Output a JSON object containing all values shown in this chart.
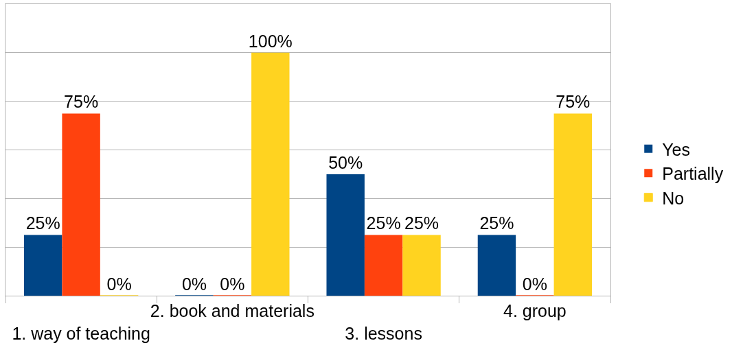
{
  "chart_data": {
    "type": "bar",
    "categories": [
      "1. way of teaching",
      "2. book and materials",
      "3. lessons",
      "4. group"
    ],
    "series": [
      {
        "name": "Yes",
        "color": "#004586",
        "values": [
          25,
          0,
          50,
          25
        ],
        "value_labels": [
          "25%",
          "0%",
          "50%",
          "25%"
        ]
      },
      {
        "name": "Partially",
        "color": "#ff420e",
        "values": [
          75,
          0,
          25,
          0
        ],
        "value_labels": [
          "75%",
          "0%",
          "25%",
          "0%"
        ]
      },
      {
        "name": "No",
        "color": "#ffd320",
        "values": [
          0,
          100,
          25,
          75
        ],
        "value_labels": [
          "0%",
          "100%",
          "25%",
          "75%"
        ]
      }
    ],
    "ylim": [
      0,
      120
    ],
    "yticks": [
      {
        "value": 0,
        "label": null
      },
      {
        "value": 20,
        "label": null
      },
      {
        "value": 40,
        "label": null
      },
      {
        "value": 60,
        "label": null
      },
      {
        "value": 80,
        "label": null
      },
      {
        "value": 100,
        "label": null
      },
      {
        "value": 120,
        "label": null
      }
    ],
    "tick_labels": "x",
    "grid": "y",
    "legend": "right"
  }
}
